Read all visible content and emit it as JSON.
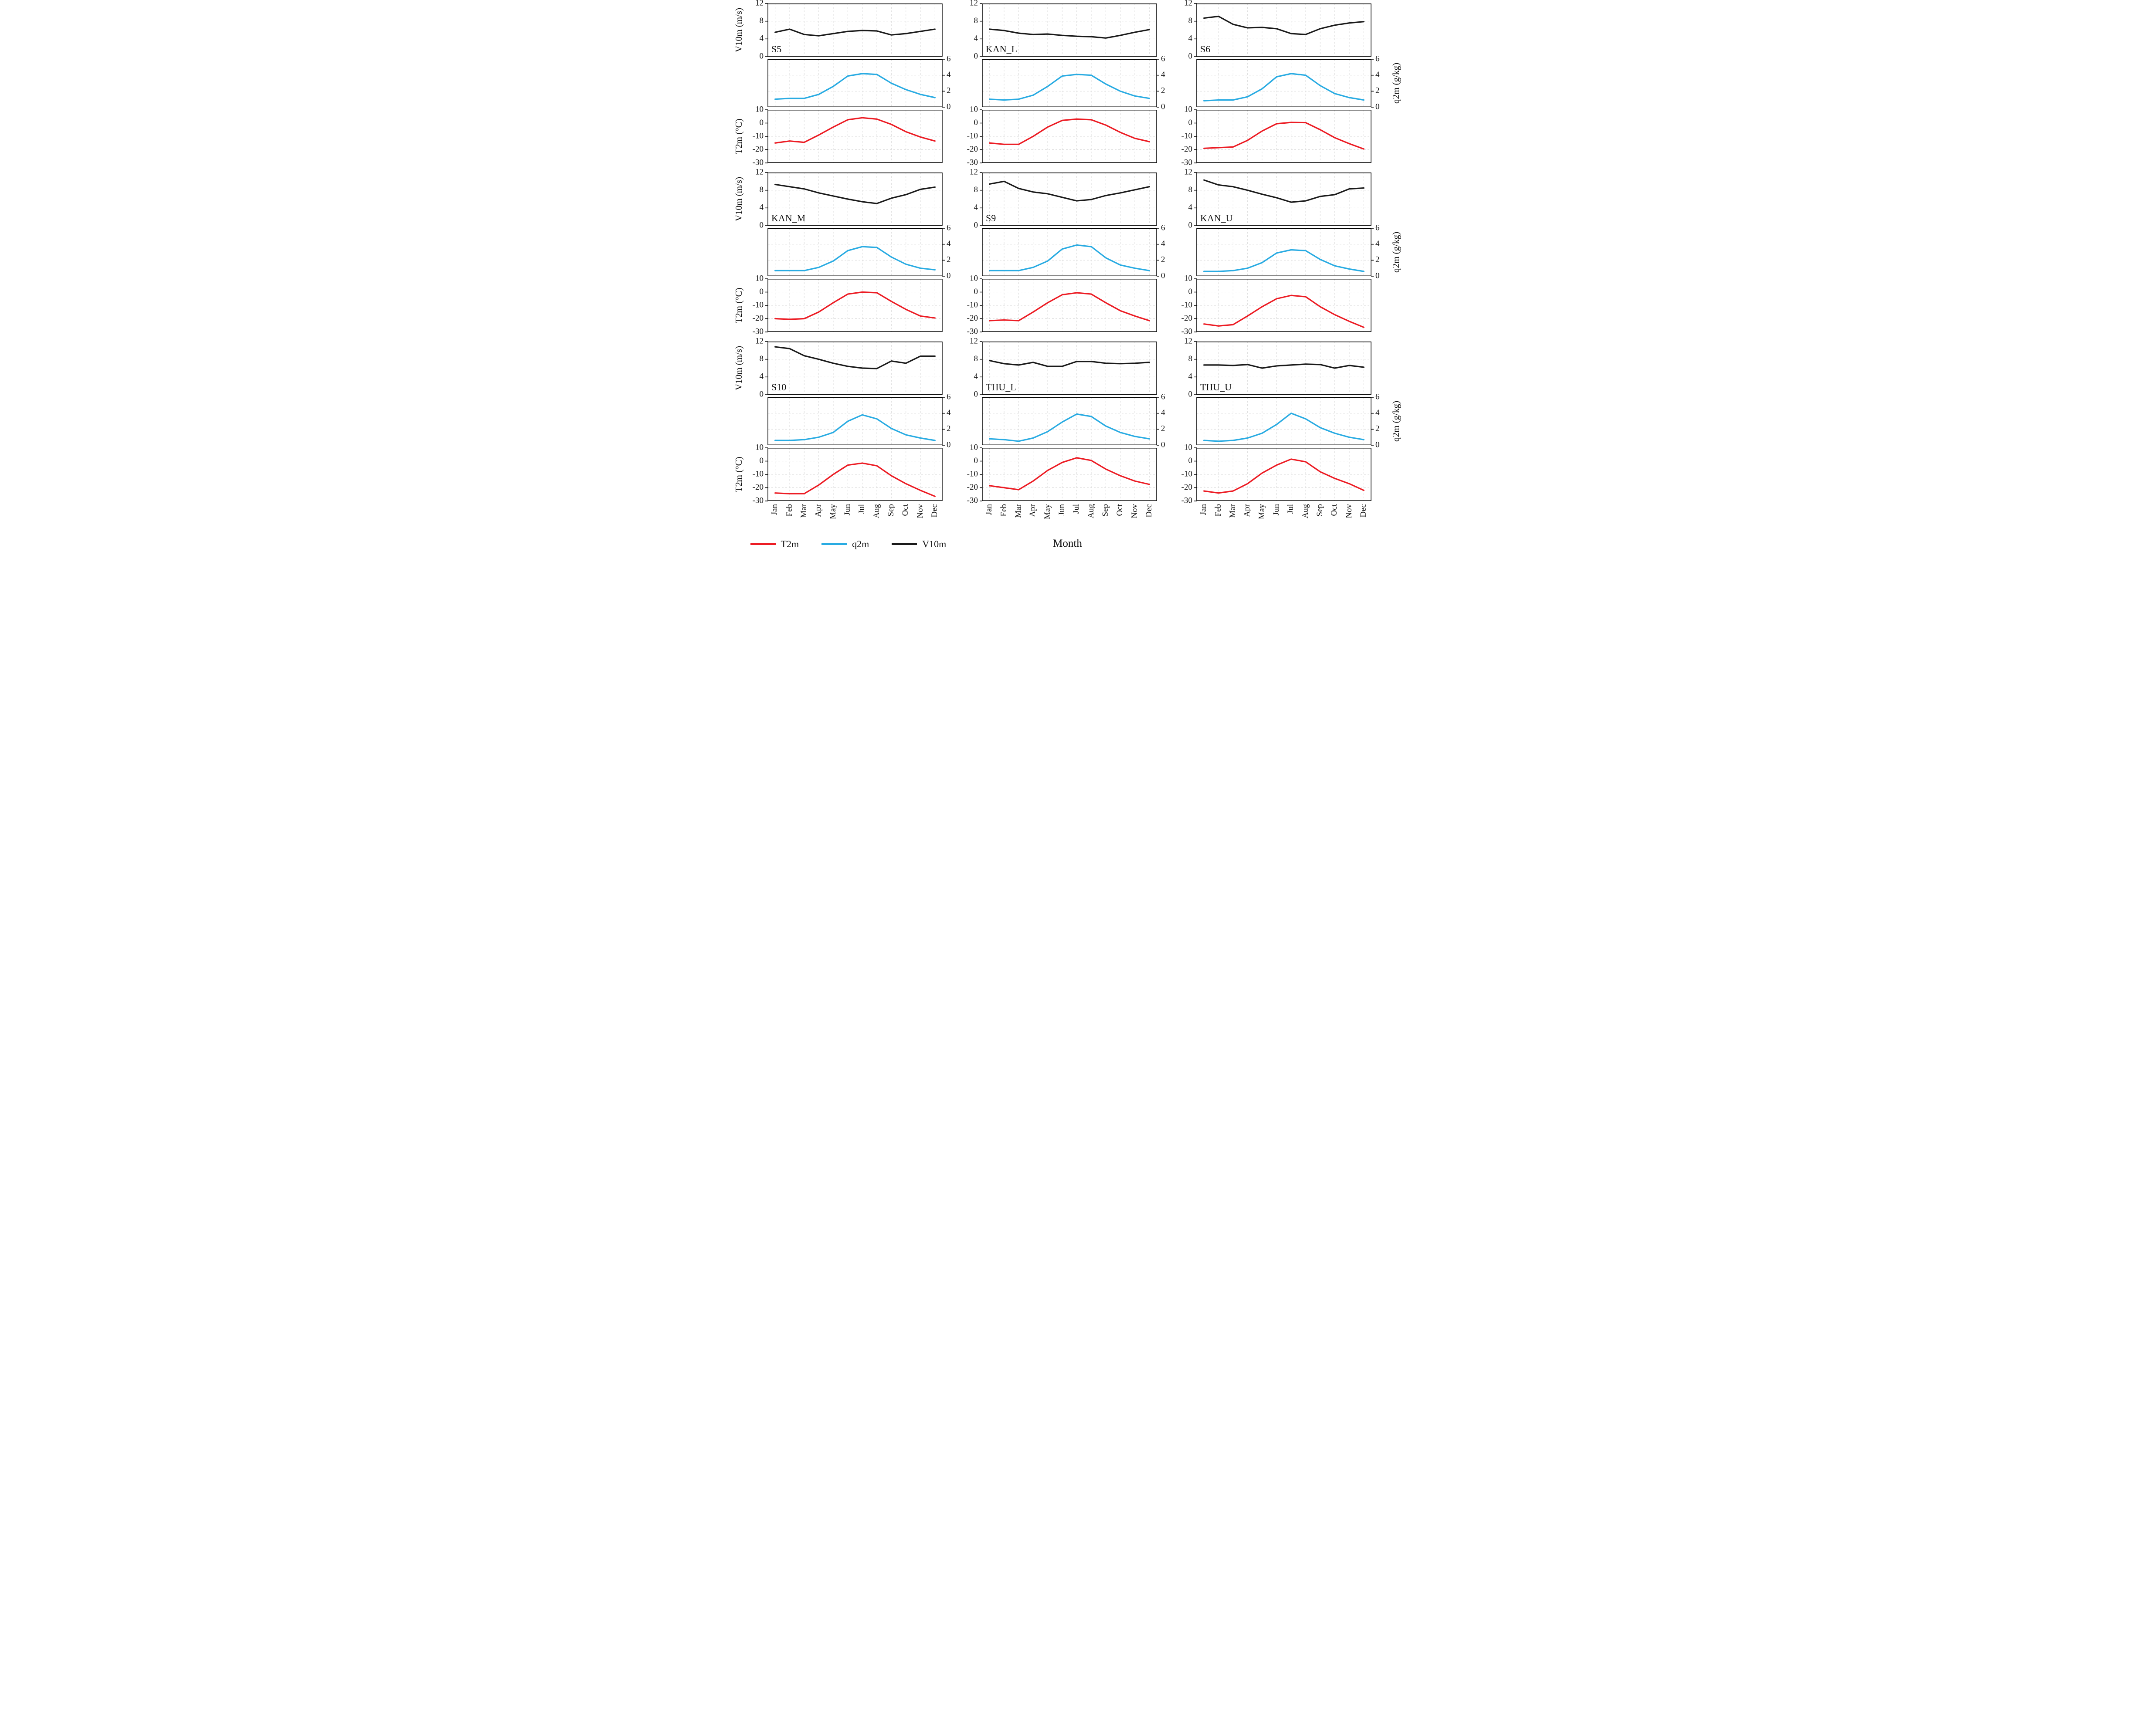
{
  "chart_data": {
    "type": "line",
    "xlabel": "Month",
    "categories": [
      "Jan",
      "Feb",
      "Mar",
      "Apr",
      "May",
      "Jun",
      "Jul",
      "Aug",
      "Sep",
      "Oct",
      "Nov",
      "Dec"
    ],
    "legend": [
      {
        "label": "T2m",
        "color": "#ec1c24"
      },
      {
        "label": "q2m",
        "color": "#29abe2"
      },
      {
        "label": "V10m",
        "color": "#1a1a1a"
      }
    ],
    "grid": true,
    "axes": {
      "V10m": {
        "label": "V10m (m/s)",
        "min": 0,
        "max": 12,
        "ticks": [
          12,
          8,
          4,
          0
        ],
        "side": "left",
        "unit": "m/s"
      },
      "q2m": {
        "label": "q2m (g/kg)",
        "min": 0,
        "max": 6,
        "ticks": [
          6,
          4,
          2,
          0
        ],
        "side": "right",
        "unit": "g/kg"
      },
      "T2m": {
        "label": "T2m (°C)",
        "min": -30,
        "max": 10,
        "ticks": [
          10,
          0,
          -10,
          -20,
          -30
        ],
        "side": "left",
        "unit": "°C"
      }
    },
    "stations": [
      {
        "name": "S5",
        "V10m": [
          5.5,
          6.2,
          5.0,
          4.7,
          5.2,
          5.7,
          5.9,
          5.8,
          4.9,
          5.2,
          5.7,
          6.2
        ],
        "q2m": [
          1.0,
          1.1,
          1.1,
          1.6,
          2.6,
          3.9,
          4.2,
          4.1,
          3.0,
          2.2,
          1.6,
          1.2
        ],
        "T2m": [
          -15,
          -13.5,
          -14.5,
          -9,
          -3,
          2.5,
          4,
          3,
          -1,
          -6.5,
          -10.5,
          -13.5
        ]
      },
      {
        "name": "KAN_L",
        "V10m": [
          6.2,
          5.9,
          5.3,
          5.0,
          5.1,
          4.8,
          4.6,
          4.5,
          4.2,
          4.8,
          5.5,
          6.1
        ],
        "q2m": [
          1.0,
          0.9,
          1.0,
          1.5,
          2.6,
          3.9,
          4.1,
          4.0,
          2.9,
          2.0,
          1.4,
          1.1
        ],
        "T2m": [
          -15,
          -16,
          -16,
          -10,
          -3,
          2,
          3,
          2.5,
          -1.5,
          -7,
          -11.5,
          -14
        ]
      },
      {
        "name": "S6",
        "V10m": [
          8.7,
          9.1,
          7.3,
          6.5,
          6.6,
          6.3,
          5.2,
          5.0,
          6.3,
          7.1,
          7.6,
          7.9
        ],
        "q2m": [
          0.8,
          0.9,
          0.9,
          1.3,
          2.3,
          3.8,
          4.2,
          4.0,
          2.7,
          1.7,
          1.2,
          0.9
        ],
        "T2m": [
          -19,
          -18.5,
          -18,
          -13,
          -6,
          -0.5,
          0.5,
          0.3,
          -5,
          -11,
          -15.5,
          -19.5
        ]
      },
      {
        "name": "KAN_M",
        "V10m": [
          9.3,
          8.8,
          8.3,
          7.4,
          6.7,
          6.0,
          5.4,
          5.0,
          6.2,
          7.0,
          8.2,
          8.7
        ],
        "q2m": [
          0.7,
          0.7,
          0.7,
          1.1,
          1.9,
          3.2,
          3.7,
          3.6,
          2.4,
          1.5,
          1.0,
          0.8
        ],
        "T2m": [
          -20,
          -20.5,
          -20,
          -15,
          -8,
          -1.5,
          0,
          -0.5,
          -7,
          -13,
          -18,
          -19.5
        ]
      },
      {
        "name": "S9",
        "V10m": [
          9.4,
          10.0,
          8.4,
          7.6,
          7.2,
          6.4,
          5.6,
          5.9,
          6.8,
          7.4,
          8.1,
          8.8
        ],
        "q2m": [
          0.7,
          0.7,
          0.7,
          1.1,
          1.9,
          3.4,
          3.9,
          3.7,
          2.3,
          1.4,
          1.0,
          0.7
        ],
        "T2m": [
          -21.5,
          -21,
          -21.5,
          -15,
          -8,
          -2,
          -0.5,
          -1.5,
          -8,
          -14,
          -18,
          -21.5
        ]
      },
      {
        "name": "KAN_U",
        "V10m": [
          10.3,
          9.2,
          8.8,
          8.0,
          7.1,
          6.3,
          5.3,
          5.6,
          6.6,
          7.0,
          8.3,
          8.5
        ],
        "q2m": [
          0.6,
          0.6,
          0.7,
          1.0,
          1.7,
          2.9,
          3.3,
          3.2,
          2.1,
          1.3,
          0.9,
          0.6
        ],
        "T2m": [
          -24,
          -25.5,
          -24.5,
          -18,
          -11,
          -5,
          -2.5,
          -3.5,
          -11,
          -17,
          -22,
          -26.5
        ]
      },
      {
        "name": "S10",
        "V10m": [
          10.8,
          10.4,
          8.8,
          8.0,
          7.1,
          6.4,
          6.0,
          5.9,
          7.6,
          7.1,
          8.7,
          8.7
        ],
        "q2m": [
          0.6,
          0.6,
          0.7,
          1.0,
          1.6,
          3.0,
          3.8,
          3.3,
          2.1,
          1.3,
          0.9,
          0.6
        ],
        "T2m": [
          -24,
          -24.5,
          -24.5,
          -18,
          -10,
          -3,
          -1.5,
          -3.5,
          -11,
          -17,
          -22,
          -26.5
        ]
      },
      {
        "name": "THU_L",
        "V10m": [
          7.7,
          7.0,
          6.7,
          7.3,
          6.4,
          6.4,
          7.5,
          7.5,
          7.1,
          7.0,
          7.1,
          7.3
        ],
        "q2m": [
          0.8,
          0.7,
          0.5,
          0.9,
          1.7,
          2.9,
          3.9,
          3.6,
          2.4,
          1.6,
          1.1,
          0.8
        ],
        "T2m": [
          -18.5,
          -20,
          -21.5,
          -15,
          -7,
          -1,
          2.5,
          0.5,
          -6,
          -11,
          -15,
          -17.5
        ]
      },
      {
        "name": "THU_U",
        "V10m": [
          6.7,
          6.7,
          6.6,
          6.8,
          6.0,
          6.5,
          6.7,
          6.9,
          6.8,
          6.0,
          6.6,
          6.2
        ],
        "q2m": [
          0.6,
          0.5,
          0.6,
          0.9,
          1.5,
          2.6,
          4.0,
          3.3,
          2.2,
          1.5,
          1.0,
          0.7
        ],
        "T2m": [
          -22.5,
          -24,
          -22.5,
          -17,
          -9,
          -3,
          1.5,
          -0.5,
          -8,
          -13,
          -17,
          -22
        ]
      }
    ]
  }
}
